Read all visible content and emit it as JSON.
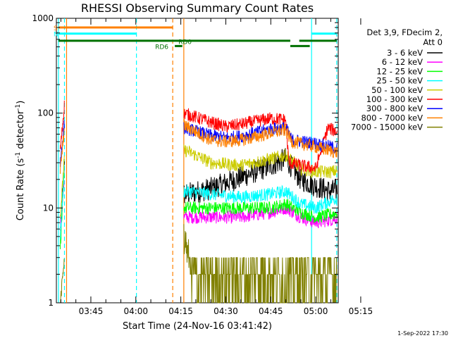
{
  "chart_data": {
    "type": "line",
    "title": "RHESSI Observing Summary Count Rates",
    "xlabel": "Start Time (24-Nov-16 03:41:42)",
    "ylabel_main": "Count Rate (s",
    "ylabel_sup1": "-1",
    "ylabel_mid": " detector",
    "ylabel_sup2": "-1",
    "ylabel_end": ")",
    "yscale": "log",
    "ylim": [
      1,
      1000
    ],
    "xlim_minutes": [
      3.5,
      97.5
    ],
    "x_tick_labels": [
      {
        "label": "03:45",
        "minute": 15
      },
      {
        "label": "04:00",
        "minute": 30
      },
      {
        "label": "04:15",
        "minute": 45
      },
      {
        "label": "04:30",
        "minute": 60
      },
      {
        "label": "04:45",
        "minute": 75
      },
      {
        "label": "05:00",
        "minute": 90
      },
      {
        "label": "05:15",
        "minute": 105
      }
    ],
    "y_tick_labels": [
      {
        "label": "1",
        "value": 1
      },
      {
        "label": "10",
        "value": 10
      },
      {
        "label": "100",
        "value": 100
      },
      {
        "label": "1000",
        "value": 1000
      }
    ],
    "legend": {
      "header": [
        "Det 3,9, FDecim 2,",
        "Att 0"
      ],
      "placement": "right"
    },
    "series": [
      {
        "name": "3 - 6 keV",
        "color": "#000000",
        "before": [
          6,
          30
        ],
        "points": [
          [
            47,
            14
          ],
          [
            55,
            16
          ],
          [
            65,
            21
          ],
          [
            75,
            28
          ],
          [
            80,
            33
          ],
          [
            85,
            20
          ],
          [
            90,
            17
          ],
          [
            95,
            15
          ],
          [
            98,
            16
          ]
        ]
      },
      {
        "name": "6 - 12 keV",
        "color": "#ff00ff",
        "before": [
          6,
          22
        ],
        "points": [
          [
            47,
            8
          ],
          [
            55,
            8
          ],
          [
            65,
            8
          ],
          [
            75,
            9
          ],
          [
            80,
            10
          ],
          [
            85,
            8
          ],
          [
            90,
            7
          ],
          [
            95,
            7.5
          ],
          [
            98,
            8
          ]
        ]
      },
      {
        "name": "12 - 25 keV",
        "color": "#00ff00",
        "before": [
          4,
          25
        ],
        "points": [
          [
            47,
            10
          ],
          [
            55,
            10
          ],
          [
            65,
            10
          ],
          [
            75,
            10
          ],
          [
            80,
            11
          ],
          [
            85,
            9
          ],
          [
            90,
            8
          ],
          [
            95,
            8.5
          ],
          [
            98,
            9
          ]
        ]
      },
      {
        "name": "25 - 50 keV",
        "color": "#00ffff",
        "before": [
          5,
          28
        ],
        "points": [
          [
            47,
            15
          ],
          [
            55,
            14
          ],
          [
            65,
            13
          ],
          [
            75,
            14
          ],
          [
            80,
            15
          ],
          [
            85,
            11
          ],
          [
            90,
            10
          ],
          [
            95,
            12
          ],
          [
            98,
            13
          ]
        ]
      },
      {
        "name": "50 - 100 keV",
        "color": "#cccc00",
        "before": [
          8,
          35
        ],
        "points": [
          [
            47,
            40
          ],
          [
            55,
            30
          ],
          [
            65,
            28
          ],
          [
            75,
            33
          ],
          [
            80,
            36
          ],
          [
            85,
            26
          ],
          [
            90,
            24
          ],
          [
            95,
            24
          ],
          [
            98,
            25
          ]
        ]
      },
      {
        "name": "100 - 300 keV",
        "color": "#ff0000",
        "before": [
          40,
          125
        ],
        "points": [
          [
            46,
            100
          ],
          [
            55,
            80
          ],
          [
            60,
            72
          ],
          [
            65,
            76
          ],
          [
            70,
            82
          ],
          [
            75,
            88
          ],
          [
            80,
            85
          ],
          [
            81,
            30
          ],
          [
            85,
            28
          ],
          [
            90,
            26
          ],
          [
            94,
            70
          ],
          [
            98,
            62
          ]
        ]
      },
      {
        "name": "300 - 800 keV",
        "color": "#0000ff",
        "before": [
          30,
          80
        ],
        "points": [
          [
            46,
            70
          ],
          [
            55,
            58
          ],
          [
            60,
            55
          ],
          [
            65,
            57
          ],
          [
            70,
            62
          ],
          [
            75,
            68
          ],
          [
            80,
            70
          ],
          [
            82,
            52
          ],
          [
            90,
            48
          ],
          [
            95,
            44
          ],
          [
            98,
            42
          ]
        ]
      },
      {
        "name": "800 - 7000 keV",
        "color": "#ff8000",
        "before": [
          25,
          70
        ],
        "points": [
          [
            46,
            75
          ],
          [
            55,
            52
          ],
          [
            60,
            50
          ],
          [
            65,
            52
          ],
          [
            70,
            56
          ],
          [
            75,
            62
          ],
          [
            80,
            66
          ],
          [
            82,
            50
          ],
          [
            90,
            44
          ],
          [
            95,
            40
          ],
          [
            98,
            38
          ]
        ]
      },
      {
        "name": "7000 - 15000 keV",
        "color": "#808000",
        "before": [
          1,
          3
        ],
        "points": [
          [
            46,
            5
          ],
          [
            50,
            2.5
          ],
          [
            55,
            2
          ],
          [
            65,
            2
          ],
          [
            75,
            2
          ],
          [
            85,
            2
          ],
          [
            95,
            2
          ]
        ]
      }
    ],
    "vlines": [
      {
        "minute": 4.2,
        "color": "#00ffff",
        "style": "solid"
      },
      {
        "minute": 6.2,
        "color": "#00ffff",
        "style": "dashed"
      },
      {
        "minute": 30.2,
        "color": "#00ffff",
        "style": "dashed"
      },
      {
        "minute": 42.3,
        "color": "#ff8000",
        "style": "dashed"
      },
      {
        "minute": 6.9,
        "color": "#ff8000",
        "style": "solid"
      },
      {
        "minute": 46.0,
        "color": "#ff8000",
        "style": "solid"
      },
      {
        "minute": 88.6,
        "color": "#00ffff",
        "style": "solid"
      },
      {
        "minute": 97.0,
        "color": "#00ffff",
        "style": "dashed"
      }
    ],
    "flag_bars": [
      {
        "label": "S",
        "color": "#ff8000",
        "start": 4.2,
        "end": 42.3,
        "value": 800
      },
      {
        "label": "N",
        "color": "#00ffff",
        "start": 4.2,
        "end": 30.2,
        "value": 690
      },
      {
        "label": "",
        "color": "#00ffff",
        "start": 88.6,
        "end": 97.0,
        "value": 690
      },
      {
        "label": "",
        "color": "#007000",
        "start": 4.2,
        "end": 81.5,
        "value": 580
      },
      {
        "label": "",
        "color": "#007000",
        "start": 84.5,
        "end": 97.0,
        "value": 580
      },
      {
        "label": "RD0",
        "color": "#007000",
        "start": 43.0,
        "end": 45.5,
        "value": 510
      },
      {
        "label": "",
        "color": "#007000",
        "start": 81.5,
        "end": 88.0,
        "value": 510
      }
    ],
    "flag_label_rd6": "RD6",
    "timestamp": "1-Sep-2022 17:30"
  }
}
